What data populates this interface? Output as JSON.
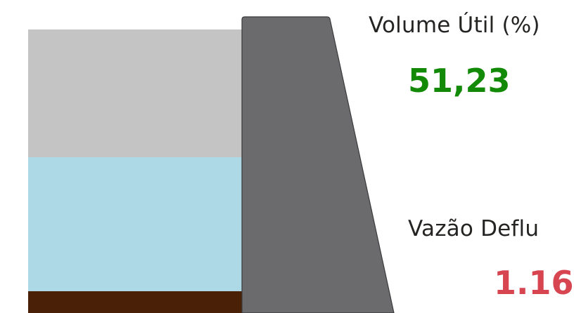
{
  "reservoir": {
    "volume_util_fraction": 0.5123,
    "colors": {
      "empty": "#c4c4c4",
      "water": "#add8e6",
      "sediment": "#4a2006",
      "dam": "#6b6b6e"
    }
  },
  "volume_util": {
    "label": "Volume Útil (%)",
    "value": "51,23",
    "color": "#138a07"
  },
  "vazao_defluente": {
    "label": "Vazão Deflu",
    "value": "1.16",
    "color": "#d64550"
  }
}
